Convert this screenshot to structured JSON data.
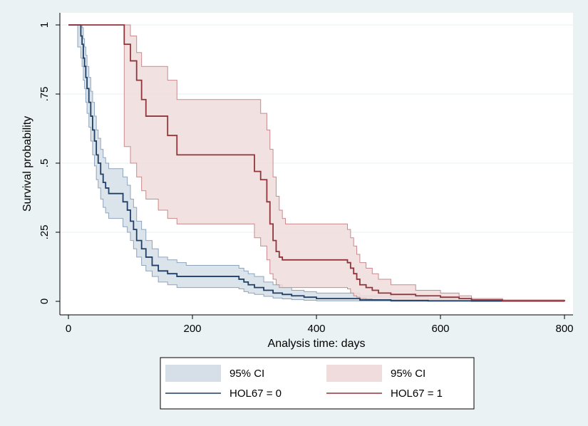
{
  "chart_data": {
    "type": "line",
    "chart_kind": "kaplan-meier survival estimate with 95% CI bands",
    "xlabel": "Analysis time: days",
    "ylabel": "Survival probability",
    "xlim": [
      0,
      800
    ],
    "ylim": [
      0,
      1
    ],
    "x_ticks": [
      0,
      200,
      400,
      600,
      800
    ],
    "x_tick_labels": [
      "0",
      "200",
      "400",
      "600",
      "800"
    ],
    "y_ticks": [
      0,
      0.25,
      0.5,
      0.75,
      1
    ],
    "y_tick_labels": [
      "0",
      ".25",
      ".5",
      ".75",
      "1"
    ],
    "grid": true,
    "legend_position": "bottom",
    "legend_columns": 2,
    "colors": {
      "background": "#eaf2f3",
      "plot_background": "#ffffff",
      "grid": "#eaf2f3",
      "series0_line": "#1f3f66",
      "series0_ci_fill": "#d6dfe8",
      "series0_ci_edge": "#8ea4bd",
      "series1_line": "#90353b",
      "series1_ci_fill": "#f0dcdc",
      "series1_ci_edge": "#c9898d"
    },
    "legend": [
      {
        "label": "95% CI",
        "kind": "area",
        "series": 0
      },
      {
        "label": "95% CI",
        "kind": "area",
        "series": 1
      },
      {
        "label": "HOL67 = 0",
        "kind": "line",
        "series": 0
      },
      {
        "label": "HOL67 = 1",
        "kind": "line",
        "series": 1
      }
    ],
    "series": [
      {
        "name": "HOL67 = 0",
        "x": [
          0,
          15,
          20,
          22,
          24,
          26,
          28,
          30,
          33,
          36,
          39,
          42,
          45,
          48,
          52,
          56,
          60,
          65,
          72,
          80,
          88,
          95,
          100,
          105,
          110,
          118,
          125,
          135,
          145,
          160,
          175,
          190,
          210,
          230,
          250,
          265,
          275,
          283,
          290,
          300,
          315,
          330,
          345,
          360,
          380,
          400,
          430,
          470,
          520,
          580,
          650,
          800
        ],
        "y": [
          1,
          1,
          0.96,
          0.93,
          0.88,
          0.85,
          0.81,
          0.77,
          0.72,
          0.67,
          0.62,
          0.58,
          0.53,
          0.5,
          0.46,
          0.43,
          0.41,
          0.39,
          0.39,
          0.39,
          0.36,
          0.33,
          0.29,
          0.26,
          0.22,
          0.19,
          0.16,
          0.13,
          0.11,
          0.1,
          0.09,
          0.09,
          0.09,
          0.09,
          0.09,
          0.09,
          0.08,
          0.07,
          0.06,
          0.05,
          0.04,
          0.03,
          0.025,
          0.02,
          0.015,
          0.01,
          0.01,
          0.005,
          0.003,
          0.002,
          0.001,
          0
        ],
        "ci_lower": [
          1,
          0.92,
          0.88,
          0.85,
          0.8,
          0.77,
          0.72,
          0.68,
          0.63,
          0.58,
          0.53,
          0.49,
          0.44,
          0.41,
          0.37,
          0.34,
          0.32,
          0.3,
          0.3,
          0.3,
          0.27,
          0.25,
          0.22,
          0.19,
          0.16,
          0.13,
          0.11,
          0.09,
          0.07,
          0.06,
          0.05,
          0.05,
          0.05,
          0.05,
          0.05,
          0.05,
          0.045,
          0.035,
          0.03,
          0.025,
          0.018,
          0.012,
          0.009,
          0.006,
          0.004,
          0.002,
          0.002,
          0.001,
          0,
          0,
          0,
          0
        ],
        "ci_upper": [
          1,
          1,
          1,
          0.99,
          0.95,
          0.92,
          0.89,
          0.85,
          0.81,
          0.76,
          0.72,
          0.67,
          0.62,
          0.59,
          0.55,
          0.52,
          0.5,
          0.48,
          0.48,
          0.48,
          0.45,
          0.42,
          0.37,
          0.34,
          0.29,
          0.26,
          0.22,
          0.19,
          0.16,
          0.15,
          0.14,
          0.13,
          0.13,
          0.13,
          0.13,
          0.13,
          0.12,
          0.11,
          0.1,
          0.09,
          0.07,
          0.06,
          0.05,
          0.04,
          0.035,
          0.03,
          0.03,
          0.02,
          0.015,
          0.01,
          0.005,
          0
        ]
      },
      {
        "name": "HOL67 = 1",
        "x": [
          0,
          90,
          100,
          110,
          118,
          125,
          145,
          160,
          175,
          200,
          250,
          290,
          300,
          310,
          320,
          325,
          330,
          335,
          340,
          345,
          350,
          360,
          380,
          400,
          430,
          450,
          455,
          460,
          465,
          470,
          480,
          490,
          500,
          520,
          560,
          600,
          630,
          650,
          700,
          800
        ],
        "y": [
          1,
          0.93,
          0.87,
          0.8,
          0.73,
          0.67,
          0.67,
          0.6,
          0.53,
          0.53,
          0.53,
          0.53,
          0.47,
          0.44,
          0.36,
          0.28,
          0.22,
          0.18,
          0.16,
          0.15,
          0.15,
          0.15,
          0.15,
          0.15,
          0.15,
          0.14,
          0.12,
          0.1,
          0.08,
          0.06,
          0.05,
          0.04,
          0.03,
          0.025,
          0.02,
          0.015,
          0.01,
          0.005,
          0.002,
          0
        ],
        "ci_lower": [
          1,
          0.56,
          0.5,
          0.45,
          0.4,
          0.37,
          0.33,
          0.3,
          0.28,
          0.28,
          0.28,
          0.28,
          0.23,
          0.2,
          0.15,
          0.1,
          0.08,
          0.06,
          0.05,
          0.05,
          0.05,
          0.05,
          0.05,
          0.05,
          0.05,
          0.045,
          0.03,
          0.02,
          0.015,
          0.01,
          0.008,
          0.006,
          0.004,
          0.003,
          0.002,
          0.001,
          0,
          0,
          0,
          0
        ],
        "ci_upper": [
          1,
          1,
          0.96,
          0.9,
          0.85,
          0.85,
          0.85,
          0.8,
          0.73,
          0.73,
          0.73,
          0.73,
          0.73,
          0.68,
          0.62,
          0.55,
          0.45,
          0.38,
          0.33,
          0.3,
          0.28,
          0.28,
          0.28,
          0.28,
          0.28,
          0.26,
          0.23,
          0.2,
          0.17,
          0.14,
          0.12,
          0.1,
          0.08,
          0.06,
          0.04,
          0.03,
          0.02,
          0.01,
          0.005,
          0
        ]
      }
    ]
  }
}
